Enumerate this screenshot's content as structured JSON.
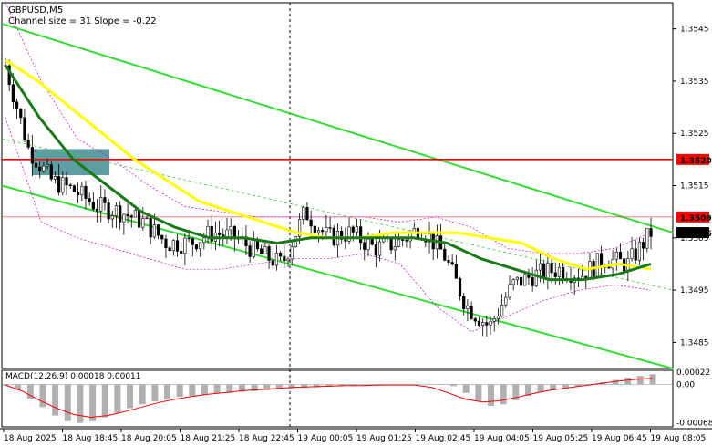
{
  "chart_data": [
    {
      "type": "candlestick",
      "title": "GBPUSD,M5",
      "subtitle": "Channel size = 31 Slope = -0.22",
      "y_ticks": [
        "1.3545",
        "1.3535",
        "1.3525",
        "1.3515",
        "1.3505",
        "1.3495",
        "1.3485"
      ],
      "ylim": [
        1.348,
        1.355
      ],
      "x_ticks": [
        "18 Aug 2025",
        "18 Aug 18:45",
        "18 Aug 20:05",
        "18 Aug 21:25",
        "18 Aug 22:45",
        "19 Aug 00:05",
        "19 Aug 01:25",
        "19 Aug 02:45",
        "19 Aug 04:05",
        "19 Aug 05:25",
        "19 Aug 06:45",
        "19 Aug 08:05"
      ],
      "price_labels": [
        {
          "text": "1.3520",
          "value": 1.352,
          "color": "#ff0000"
        },
        {
          "text": "1.3509",
          "value": 1.3509,
          "color": "#ff0000"
        },
        {
          "text": "1.3506",
          "value": 1.3506,
          "color": "#000000"
        }
      ],
      "levels": [
        {
          "value": 1.352,
          "style": "solid",
          "color": "#ff0000"
        },
        {
          "value": 1.3509,
          "style": "thin",
          "color": "#ff0000"
        }
      ],
      "series": [
        {
          "kind": "ma_yellow",
          "color": "#ffff00",
          "values": [
            1.3539,
            1.3535,
            1.353,
            1.3525,
            1.352,
            1.3516,
            1.3512,
            1.351,
            1.3508,
            1.3506,
            1.3505,
            1.3505,
            1.3506,
            1.3506,
            1.3506,
            1.3505,
            1.3504,
            1.3501,
            1.3499,
            1.35,
            1.3499
          ]
        },
        {
          "kind": "ma_green",
          "color": "#1a7a1a",
          "values": [
            1.3538,
            1.3528,
            1.352,
            1.3515,
            1.351,
            1.3507,
            1.3505,
            1.3505,
            1.3504,
            1.3505,
            1.3505,
            1.3505,
            1.3505,
            1.3504,
            1.3501,
            1.3499,
            1.3497,
            1.3497,
            1.3498,
            1.35
          ]
        },
        {
          "kind": "close",
          "color": "#000000",
          "values": [
            1.3538,
            1.3522,
            1.3516,
            1.3514,
            1.3511,
            1.351,
            1.3508,
            1.3504,
            1.3504,
            1.3506,
            1.3505,
            1.3502,
            1.35,
            1.351,
            1.3505,
            1.3506,
            1.3503,
            1.3504,
            1.3507,
            1.3502,
            1.3492,
            1.3488,
            1.3496,
            1.3498,
            1.3499,
            1.3498,
            1.3501,
            1.35,
            1.3506
          ]
        },
        {
          "kind": "bollinger_upper",
          "color": "#cc00cc",
          "values": [
            1.355,
            1.3535,
            1.3524,
            1.352,
            1.3515,
            1.3511,
            1.351,
            1.3509,
            1.3509,
            1.3509,
            1.3509,
            1.3508,
            1.3509,
            1.3507,
            1.3503,
            1.3502,
            1.3502,
            1.3503,
            1.3506
          ]
        },
        {
          "kind": "bollinger_lower",
          "color": "#cc00cc",
          "values": [
            1.3528,
            1.3508,
            1.3505,
            1.3503,
            1.3501,
            1.3499,
            1.3499,
            1.35,
            1.3501,
            1.3501,
            1.3502,
            1.35,
            1.3492,
            1.3487,
            1.349,
            1.3493,
            1.3495,
            1.3496,
            1.3495
          ]
        }
      ],
      "channel": {
        "upper": [
          {
            "x": 0,
            "y": 1.3546
          },
          {
            "x": 1,
            "y": 1.3506
          }
        ],
        "middle": [
          {
            "x": 0,
            "y": 1.3524
          },
          {
            "x": 1,
            "y": 1.3495
          }
        ],
        "lower": [
          {
            "x": 0,
            "y": 1.3515
          },
          {
            "x": 1,
            "y": 1.348
          }
        ]
      },
      "zone": {
        "top": 1.3522,
        "bottom": 1.3517,
        "color": "#5f9ea0"
      },
      "legend": "none",
      "grid": false
    },
    {
      "type": "bar",
      "title": "MACD(12,26,9) 0.00018 0.00011",
      "y_ticks": [
        "0.00022",
        "0.00",
        "-0.00068"
      ],
      "ylim": [
        -0.00075,
        0.00025
      ],
      "histogram": [
        -2e-05,
        -0.0001,
        -0.00025,
        -0.0004,
        -0.00055,
        -0.00065,
        -0.00068,
        -0.00065,
        -0.00058,
        -0.0005,
        -0.00042,
        -0.00035,
        -0.0003,
        -0.00026,
        -0.00022,
        -0.0002,
        -0.00018,
        -0.00016,
        -0.00015,
        -0.00013,
        -0.00012,
        -0.0001,
        -8e-05,
        -7e-05,
        -6e-05,
        -5e-05,
        -4e-05,
        -3e-05,
        -3e-05,
        -2e-05,
        -2e-05,
        -1e-05,
        -1e-05,
        -1e-05,
        0.0,
        0.0,
        -3e-05,
        -0.00015,
        -0.0003,
        -0.00038,
        -0.00035,
        -0.00028,
        -0.0002,
        -0.00014,
        -0.0001,
        -6e-05,
        -3e-05,
        0.0,
        4e-05,
        8e-05,
        0.00012,
        0.00015,
        0.00018
      ],
      "signal": [
        -1e-05,
        -0.00012,
        -0.00028,
        -0.00042,
        -0.00053,
        -0.00058,
        -0.00055,
        -0.00048,
        -0.0004,
        -0.00032,
        -0.00026,
        -0.00021,
        -0.00017,
        -0.00014,
        -0.00011,
        -9e-05,
        -7e-05,
        -5e-05,
        -4e-05,
        -3e-05,
        -2e-05,
        -2e-05,
        -1e-05,
        -1e-05,
        -1e-05,
        -5e-05,
        -0.00015,
        -0.00026,
        -0.00031,
        -0.00029,
        -0.00023,
        -0.00016,
        -0.0001,
        -6e-05,
        -2e-05,
        2e-05,
        6e-05,
        9e-05,
        0.00011
      ],
      "signal_color": "#ff0000",
      "bar_color": "#b0b0b0"
    }
  ]
}
